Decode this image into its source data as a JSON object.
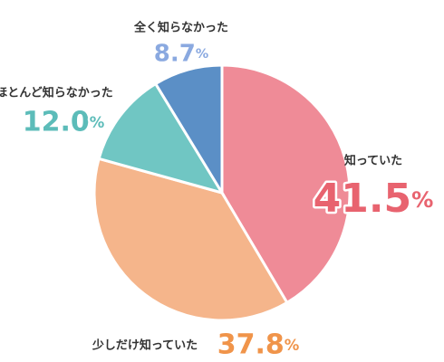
{
  "chart_data": {
    "type": "pie",
    "categories": [
      "知っていた",
      "少しだけ知っていた",
      "ほとんど知らなかった",
      "全く知らなかった"
    ],
    "values": [
      41.5,
      37.8,
      12.0,
      8.7
    ],
    "value_labels": [
      "41.5%",
      "37.8%",
      "12.0%",
      "8.7%"
    ],
    "colors": [
      "#ef8b97",
      "#f5b58b",
      "#70c6c3",
      "#5b8fc6"
    ],
    "label_colors": [
      "#e8636f",
      "#f0944a",
      "#5cbcb9",
      "#8aa9e0"
    ]
  }
}
